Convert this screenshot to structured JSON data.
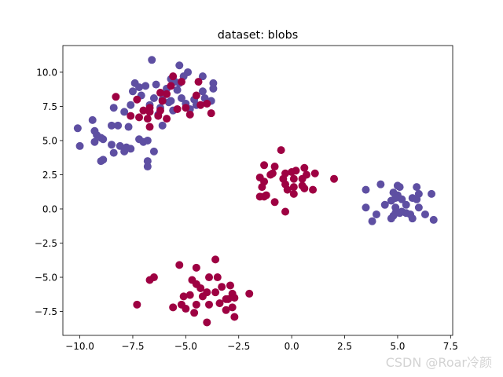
{
  "chart_data": {
    "type": "scatter",
    "title": "dataset: blobs",
    "xlabel": "",
    "ylabel": "",
    "xlim": [
      -10.8,
      7.6
    ],
    "ylim": [
      -9.25,
      11.95
    ],
    "xticks": [
      {
        "value": -10.0,
        "label": "−10.0"
      },
      {
        "value": -7.5,
        "label": "−7.5"
      },
      {
        "value": -5.0,
        "label": "−5.0"
      },
      {
        "value": -2.5,
        "label": "−2.5"
      },
      {
        "value": 0.0,
        "label": "0.0"
      },
      {
        "value": 2.5,
        "label": "2.5"
      },
      {
        "value": 5.0,
        "label": "5.0"
      },
      {
        "value": 7.5,
        "label": "7.5"
      }
    ],
    "yticks": [
      {
        "value": -7.5,
        "label": "−7.5"
      },
      {
        "value": -5.0,
        "label": "−5.0"
      },
      {
        "value": -2.5,
        "label": "−2.5"
      },
      {
        "value": 0.0,
        "label": "0.0"
      },
      {
        "value": 2.5,
        "label": "2.5"
      },
      {
        "value": 5.0,
        "label": "5.0"
      },
      {
        "value": 7.5,
        "label": "7.5"
      },
      {
        "value": 10.0,
        "label": "10.0"
      }
    ],
    "grid": false,
    "series": [
      {
        "color": "#5e4fa2",
        "points": [
          [
            -6.6,
            10.9
          ],
          [
            -5.3,
            10.5
          ],
          [
            -4.9,
            10.0
          ],
          [
            -5.1,
            9.7
          ],
          [
            -4.2,
            9.7
          ],
          [
            -5.7,
            9.5
          ],
          [
            -5.3,
            9.2
          ],
          [
            -5.5,
            9.3
          ],
          [
            -7.4,
            9.2
          ],
          [
            -7.2,
            8.9
          ],
          [
            -6.9,
            9.0
          ],
          [
            -5.9,
            8.8
          ],
          [
            -5.4,
            8.7
          ],
          [
            -4.2,
            8.6
          ],
          [
            -3.7,
            9.2
          ],
          [
            -3.7,
            8.8
          ],
          [
            -6.4,
            9.1
          ],
          [
            -7.5,
            8.6
          ],
          [
            -7.1,
            8.3
          ],
          [
            -6.5,
            8.1
          ],
          [
            -6.1,
            8.0
          ],
          [
            -5.7,
            7.9
          ],
          [
            -5.2,
            8.1
          ],
          [
            -4.6,
            8.0
          ],
          [
            -4.1,
            8.1
          ],
          [
            -3.8,
            7.9
          ],
          [
            -6.7,
            7.6
          ],
          [
            -6.2,
            7.4
          ],
          [
            -5.8,
            7.8
          ],
          [
            -5.0,
            7.7
          ],
          [
            -4.5,
            7.6
          ],
          [
            -7.6,
            7.6
          ],
          [
            -8.4,
            7.4
          ],
          [
            -7.9,
            7.1
          ],
          [
            -6.3,
            6.9
          ],
          [
            -5.6,
            7.2
          ],
          [
            -4.8,
            7.3
          ],
          [
            -6.1,
            6.1
          ],
          [
            -9.4,
            6.5
          ],
          [
            -8.5,
            6.1
          ],
          [
            -8.2,
            6.1
          ],
          [
            -7.7,
            6.0
          ],
          [
            -10.1,
            5.9
          ],
          [
            -9.3,
            5.7
          ],
          [
            -9.2,
            5.4
          ],
          [
            -9.0,
            5.2
          ],
          [
            -8.9,
            5.1
          ],
          [
            -9.3,
            4.9
          ],
          [
            -10.0,
            4.6
          ],
          [
            -7.2,
            5.1
          ],
          [
            -7.0,
            4.9
          ],
          [
            -6.8,
            5.0
          ],
          [
            -8.5,
            4.7
          ],
          [
            -8.1,
            4.6
          ],
          [
            -7.8,
            4.5
          ],
          [
            -7.6,
            4.4
          ],
          [
            -8.4,
            4.1
          ],
          [
            -7.9,
            4.2
          ],
          [
            -6.5,
            4.2
          ],
          [
            -8.9,
            3.6
          ],
          [
            -9.0,
            3.5
          ],
          [
            -6.8,
            3.5
          ],
          [
            -6.8,
            3.1
          ],
          [
            3.5,
            1.4
          ],
          [
            4.2,
            1.8
          ],
          [
            4.8,
            1.2
          ],
          [
            5.0,
            1.7
          ],
          [
            5.1,
            1.6
          ],
          [
            5.0,
            1.0
          ],
          [
            5.9,
            1.6
          ],
          [
            6.0,
            1.1
          ],
          [
            6.6,
            1.1
          ],
          [
            5.7,
            0.8
          ],
          [
            4.7,
            0.6
          ],
          [
            4.9,
            0.8
          ],
          [
            4.4,
            0.3
          ],
          [
            5.2,
            0.7
          ],
          [
            5.9,
            0.7
          ],
          [
            3.5,
            0.1
          ],
          [
            4.9,
            0.1
          ],
          [
            5.4,
            0.3
          ],
          [
            6.0,
            0.1
          ],
          [
            4.9,
            -0.3
          ],
          [
            5.2,
            -0.2
          ],
          [
            5.4,
            -0.3
          ],
          [
            6.3,
            -0.4
          ],
          [
            4.0,
            -0.4
          ],
          [
            4.8,
            -0.5
          ],
          [
            5.1,
            -0.3
          ],
          [
            5.6,
            -0.4
          ],
          [
            3.8,
            -0.9
          ],
          [
            4.7,
            -0.7
          ],
          [
            5.7,
            -0.7
          ],
          [
            6.7,
            -0.8
          ]
        ]
      },
      {
        "color": "#9e0142",
        "points": [
          [
            -5.6,
            9.7
          ],
          [
            -5.2,
            9.3
          ],
          [
            -4.4,
            9.3
          ],
          [
            -5.7,
            9.0
          ],
          [
            -6.2,
            8.5
          ],
          [
            -5.9,
            8.4
          ],
          [
            -6.1,
            7.9
          ],
          [
            -4.5,
            8.3
          ],
          [
            -7.3,
            8.0
          ],
          [
            -8.3,
            8.2
          ],
          [
            -4.3,
            7.6
          ],
          [
            -4.0,
            7.7
          ],
          [
            -6.7,
            7.4
          ],
          [
            -7.0,
            7.2
          ],
          [
            -5.0,
            7.4
          ],
          [
            -5.4,
            7.3
          ],
          [
            -6.7,
            7.1
          ],
          [
            -6.2,
            7.2
          ],
          [
            -7.6,
            6.8
          ],
          [
            -6.8,
            6.6
          ],
          [
            -7.2,
            6.7
          ],
          [
            -6.3,
            6.8
          ],
          [
            -5.9,
            6.6
          ],
          [
            -4.8,
            6.9
          ],
          [
            -3.8,
            7.0
          ],
          [
            -6.7,
            6.0
          ],
          [
            -0.5,
            4.3
          ],
          [
            -1.3,
            3.2
          ],
          [
            -0.8,
            3.1
          ],
          [
            -0.3,
            2.6
          ],
          [
            0.2,
            2.8
          ],
          [
            0.6,
            3.0
          ],
          [
            1.1,
            2.6
          ],
          [
            -1.0,
            2.5
          ],
          [
            -0.9,
            2.6
          ],
          [
            -1.5,
            2.3
          ],
          [
            -0.4,
            2.2
          ],
          [
            0.0,
            2.7
          ],
          [
            0.1,
            2.2
          ],
          [
            0.5,
            2.2
          ],
          [
            0.7,
            2.5
          ],
          [
            2.0,
            2.2
          ],
          [
            -1.3,
            2.0
          ],
          [
            -0.3,
            1.8
          ],
          [
            0.1,
            1.6
          ],
          [
            0.5,
            1.7
          ],
          [
            -1.4,
            1.6
          ],
          [
            -0.2,
            1.4
          ],
          [
            0.6,
            1.5
          ],
          [
            1.0,
            1.4
          ],
          [
            -1.2,
            1.0
          ],
          [
            -1.5,
            0.9
          ],
          [
            -1.3,
            0.9
          ],
          [
            0.1,
            1.1
          ],
          [
            -0.8,
            0.5
          ],
          [
            -0.3,
            -0.2
          ],
          [
            -5.3,
            -4.1
          ],
          [
            -3.6,
            -3.7
          ],
          [
            -6.5,
            -5.0
          ],
          [
            -4.5,
            -4.3
          ],
          [
            -3.9,
            -5.0
          ],
          [
            -3.5,
            -5.0
          ],
          [
            -6.7,
            -5.2
          ],
          [
            -4.7,
            -5.2
          ],
          [
            -4.5,
            -5.5
          ],
          [
            -4.8,
            -6.3
          ],
          [
            -4.3,
            -5.8
          ],
          [
            -4.0,
            -6.1
          ],
          [
            -3.6,
            -6.1
          ],
          [
            -3.3,
            -5.7
          ],
          [
            -2.9,
            -5.6
          ],
          [
            -2.8,
            -6.2
          ],
          [
            -5.1,
            -6.4
          ],
          [
            -4.2,
            -6.4
          ],
          [
            -3.0,
            -6.6
          ],
          [
            -2.7,
            -6.5
          ],
          [
            -3.4,
            -6.9
          ],
          [
            -3.1,
            -6.6
          ],
          [
            -2.0,
            -6.2
          ],
          [
            -5.2,
            -7.0
          ],
          [
            -4.5,
            -7.0
          ],
          [
            -3.9,
            -7.0
          ],
          [
            -7.3,
            -7.0
          ],
          [
            -5.6,
            -7.2
          ],
          [
            -5.0,
            -7.3
          ],
          [
            -4.6,
            -7.6
          ],
          [
            -2.8,
            -7.2
          ],
          [
            -3.1,
            -7.4
          ],
          [
            -2.7,
            -7.9
          ],
          [
            -4.0,
            -8.3
          ]
        ]
      }
    ]
  },
  "watermark": "CSDN @Roar冷颜"
}
